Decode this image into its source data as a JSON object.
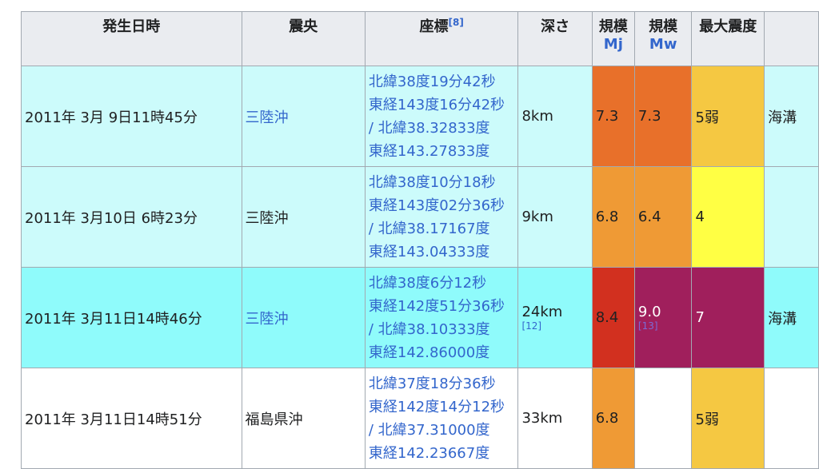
{
  "headers": {
    "datetime": "発生日時",
    "epicenter": "震央",
    "coords": "座標",
    "coords_ref": "[8]",
    "depth": "深さ",
    "mj": "規模",
    "mj_sub": "Mj",
    "mw": "規模",
    "mw_sub": "Mw",
    "intensity": "最大震度"
  },
  "rows": [
    {
      "datetime": "2011年  3月  9日11時45分",
      "epicenter": "三陸沖",
      "epicenter_link": true,
      "coords": [
        "北緯38度19分42秒",
        "東経143度16分42秒",
        "/ 北緯38.32833度",
        "東経143.27833度"
      ],
      "depth": "8km",
      "depth_ref": "",
      "mj": "7.3",
      "mw": "7.3",
      "mw_ref": "",
      "intensity": "5弱",
      "note": "海溝",
      "bg": "#ccfbfb",
      "mj_color": "#e8702a",
      "mw_color": "#e8702a",
      "int_color": "#f5c842"
    },
    {
      "datetime": "2011年  3月10日  6時23分",
      "epicenter": "三陸沖",
      "epicenter_link": false,
      "coords": [
        "北緯38度10分18秒",
        "東経143度02分36秒",
        "/ 北緯38.17167度",
        "東経143.04333度"
      ],
      "depth": "9km",
      "depth_ref": "",
      "mj": "6.8",
      "mw": "6.4",
      "mw_ref": "",
      "intensity": "4",
      "note": "",
      "bg": "#ccfbfb",
      "mj_color": "#ef9a35",
      "mw_color": "#ef9a35",
      "int_color": "#ffff44"
    },
    {
      "datetime": "2011年  3月11日14時46分",
      "epicenter": "三陸沖",
      "epicenter_link": true,
      "coords": [
        "北緯38度6分12秒",
        "東経142度51分36秒",
        "/ 北緯38.10333度",
        "東経142.86000度"
      ],
      "depth": "24km",
      "depth_ref": "[12]",
      "mj": "8.4",
      "mw": "9.0",
      "mw_ref": "[13]",
      "intensity": "7",
      "note": "海溝",
      "bg": "#8ffbfb",
      "mj_color": "#d2301f",
      "mw_color": "#a01f5c",
      "int_color": "#a01f5c"
    },
    {
      "datetime": "2011年  3月11日14時51分",
      "epicenter": "福島県沖",
      "epicenter_link": false,
      "coords": [
        "北緯37度18分36秒",
        "東経142度14分12秒",
        "/ 北緯37.31000度",
        "東経142.23667度"
      ],
      "depth": "33km",
      "depth_ref": "",
      "mj": "6.8",
      "mw": "",
      "mw_ref": "",
      "intensity": "5弱",
      "note": "",
      "bg": "#ffffff",
      "mj_color": "#ef9a35",
      "mw_color": "#ffffff",
      "int_color": "#f5c842"
    }
  ]
}
